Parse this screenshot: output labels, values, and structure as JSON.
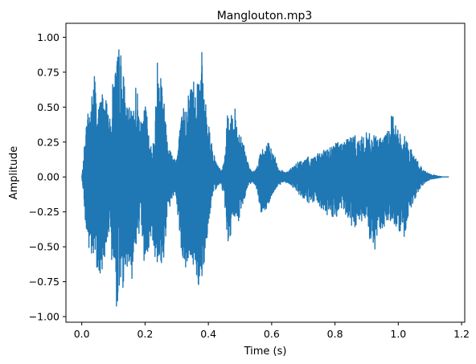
{
  "chart_data": {
    "type": "line",
    "title": "Manglouton.mp3",
    "xlabel": "Time (s)",
    "ylabel": "Amplitude",
    "xlim": [
      -0.05,
      1.21
    ],
    "ylim": [
      -1.04,
      1.1
    ],
    "xticks": [
      0.0,
      0.2,
      0.4,
      0.6,
      0.8,
      1.0,
      1.2
    ],
    "xtick_labels": [
      "0.0",
      "0.2",
      "0.4",
      "0.6",
      "0.8",
      "1.0",
      "1.2"
    ],
    "yticks": [
      -1.0,
      -0.75,
      -0.5,
      -0.25,
      0.0,
      0.25,
      0.5,
      0.75,
      1.0
    ],
    "ytick_labels": [
      "−1.00",
      "−0.75",
      "−0.50",
      "−0.25",
      "0.00",
      "0.25",
      "0.50",
      "0.75",
      "1.00"
    ],
    "grid": false,
    "series": [
      {
        "color": "#1f77b4",
        "envelope": {
          "t": [
            0.0,
            0.005,
            0.01,
            0.02,
            0.03,
            0.04,
            0.05,
            0.06,
            0.07,
            0.08,
            0.09,
            0.1,
            0.11,
            0.12,
            0.13,
            0.14,
            0.15,
            0.16,
            0.17,
            0.18,
            0.19,
            0.2,
            0.21,
            0.22,
            0.23,
            0.24,
            0.25,
            0.26,
            0.27,
            0.28,
            0.29,
            0.3,
            0.31,
            0.32,
            0.33,
            0.34,
            0.35,
            0.36,
            0.37,
            0.38,
            0.39,
            0.4,
            0.41,
            0.42,
            0.43,
            0.44,
            0.45,
            0.46,
            0.47,
            0.48,
            0.49,
            0.5,
            0.51,
            0.52,
            0.53,
            0.54,
            0.55,
            0.56,
            0.57,
            0.58,
            0.59,
            0.6,
            0.61,
            0.62,
            0.63,
            0.64,
            0.65,
            0.66,
            0.67,
            0.68,
            0.69,
            0.7,
            0.72,
            0.74,
            0.76,
            0.78,
            0.8,
            0.82,
            0.84,
            0.86,
            0.88,
            0.9,
            0.92,
            0.94,
            0.96,
            0.98,
            1.0,
            1.02,
            1.04,
            1.06,
            1.08,
            1.1,
            1.12,
            1.14,
            1.155
          ],
          "pos": [
            0.0,
            0.1,
            0.3,
            0.5,
            0.55,
            0.8,
            0.45,
            0.6,
            0.65,
            0.55,
            0.4,
            0.75,
            0.85,
            0.97,
            0.8,
            0.55,
            0.5,
            0.45,
            0.7,
            0.55,
            0.35,
            0.55,
            0.4,
            0.2,
            0.3,
            0.92,
            0.85,
            0.55,
            0.35,
            0.2,
            0.15,
            0.15,
            0.35,
            0.5,
            0.55,
            0.65,
            0.75,
            0.7,
            0.8,
            0.9,
            0.55,
            0.45,
            0.25,
            0.15,
            0.08,
            0.05,
            0.1,
            0.45,
            0.4,
            0.55,
            0.4,
            0.35,
            0.28,
            0.15,
            0.06,
            0.04,
            0.05,
            0.15,
            0.2,
            0.22,
            0.25,
            0.2,
            0.15,
            0.08,
            0.05,
            0.04,
            0.04,
            0.06,
            0.08,
            0.1,
            0.12,
            0.12,
            0.15,
            0.16,
            0.18,
            0.22,
            0.25,
            0.26,
            0.3,
            0.3,
            0.28,
            0.32,
            0.3,
            0.28,
            0.3,
            0.45,
            0.34,
            0.3,
            0.2,
            0.12,
            0.05,
            0.02,
            0.01,
            0.0,
            0.0
          ],
          "neg": [
            0.0,
            -0.1,
            -0.3,
            -0.55,
            -0.6,
            -0.65,
            -0.65,
            -0.77,
            -0.6,
            -0.5,
            -0.55,
            -0.65,
            -0.94,
            -0.85,
            -0.8,
            -0.7,
            -0.6,
            -0.75,
            -0.5,
            -0.45,
            -0.4,
            -0.7,
            -0.55,
            -0.4,
            -0.55,
            -0.7,
            -0.65,
            -0.6,
            -0.3,
            -0.2,
            -0.15,
            -0.2,
            -0.45,
            -0.65,
            -0.7,
            -0.55,
            -0.65,
            -0.7,
            -0.8,
            -0.75,
            -0.55,
            -0.35,
            -0.2,
            -0.1,
            -0.06,
            -0.05,
            -0.15,
            -0.45,
            -0.5,
            -0.3,
            -0.35,
            -0.3,
            -0.2,
            -0.1,
            -0.05,
            -0.04,
            -0.06,
            -0.18,
            -0.3,
            -0.25,
            -0.2,
            -0.15,
            -0.1,
            -0.06,
            -0.05,
            -0.04,
            -0.04,
            -0.06,
            -0.08,
            -0.1,
            -0.14,
            -0.16,
            -0.2,
            -0.18,
            -0.25,
            -0.28,
            -0.3,
            -0.25,
            -0.3,
            -0.4,
            -0.33,
            -0.35,
            -0.6,
            -0.38,
            -0.35,
            -0.3,
            -0.4,
            -0.45,
            -0.22,
            -0.12,
            -0.05,
            -0.02,
            -0.01,
            0.0,
            0.0
          ]
        }
      }
    ]
  }
}
